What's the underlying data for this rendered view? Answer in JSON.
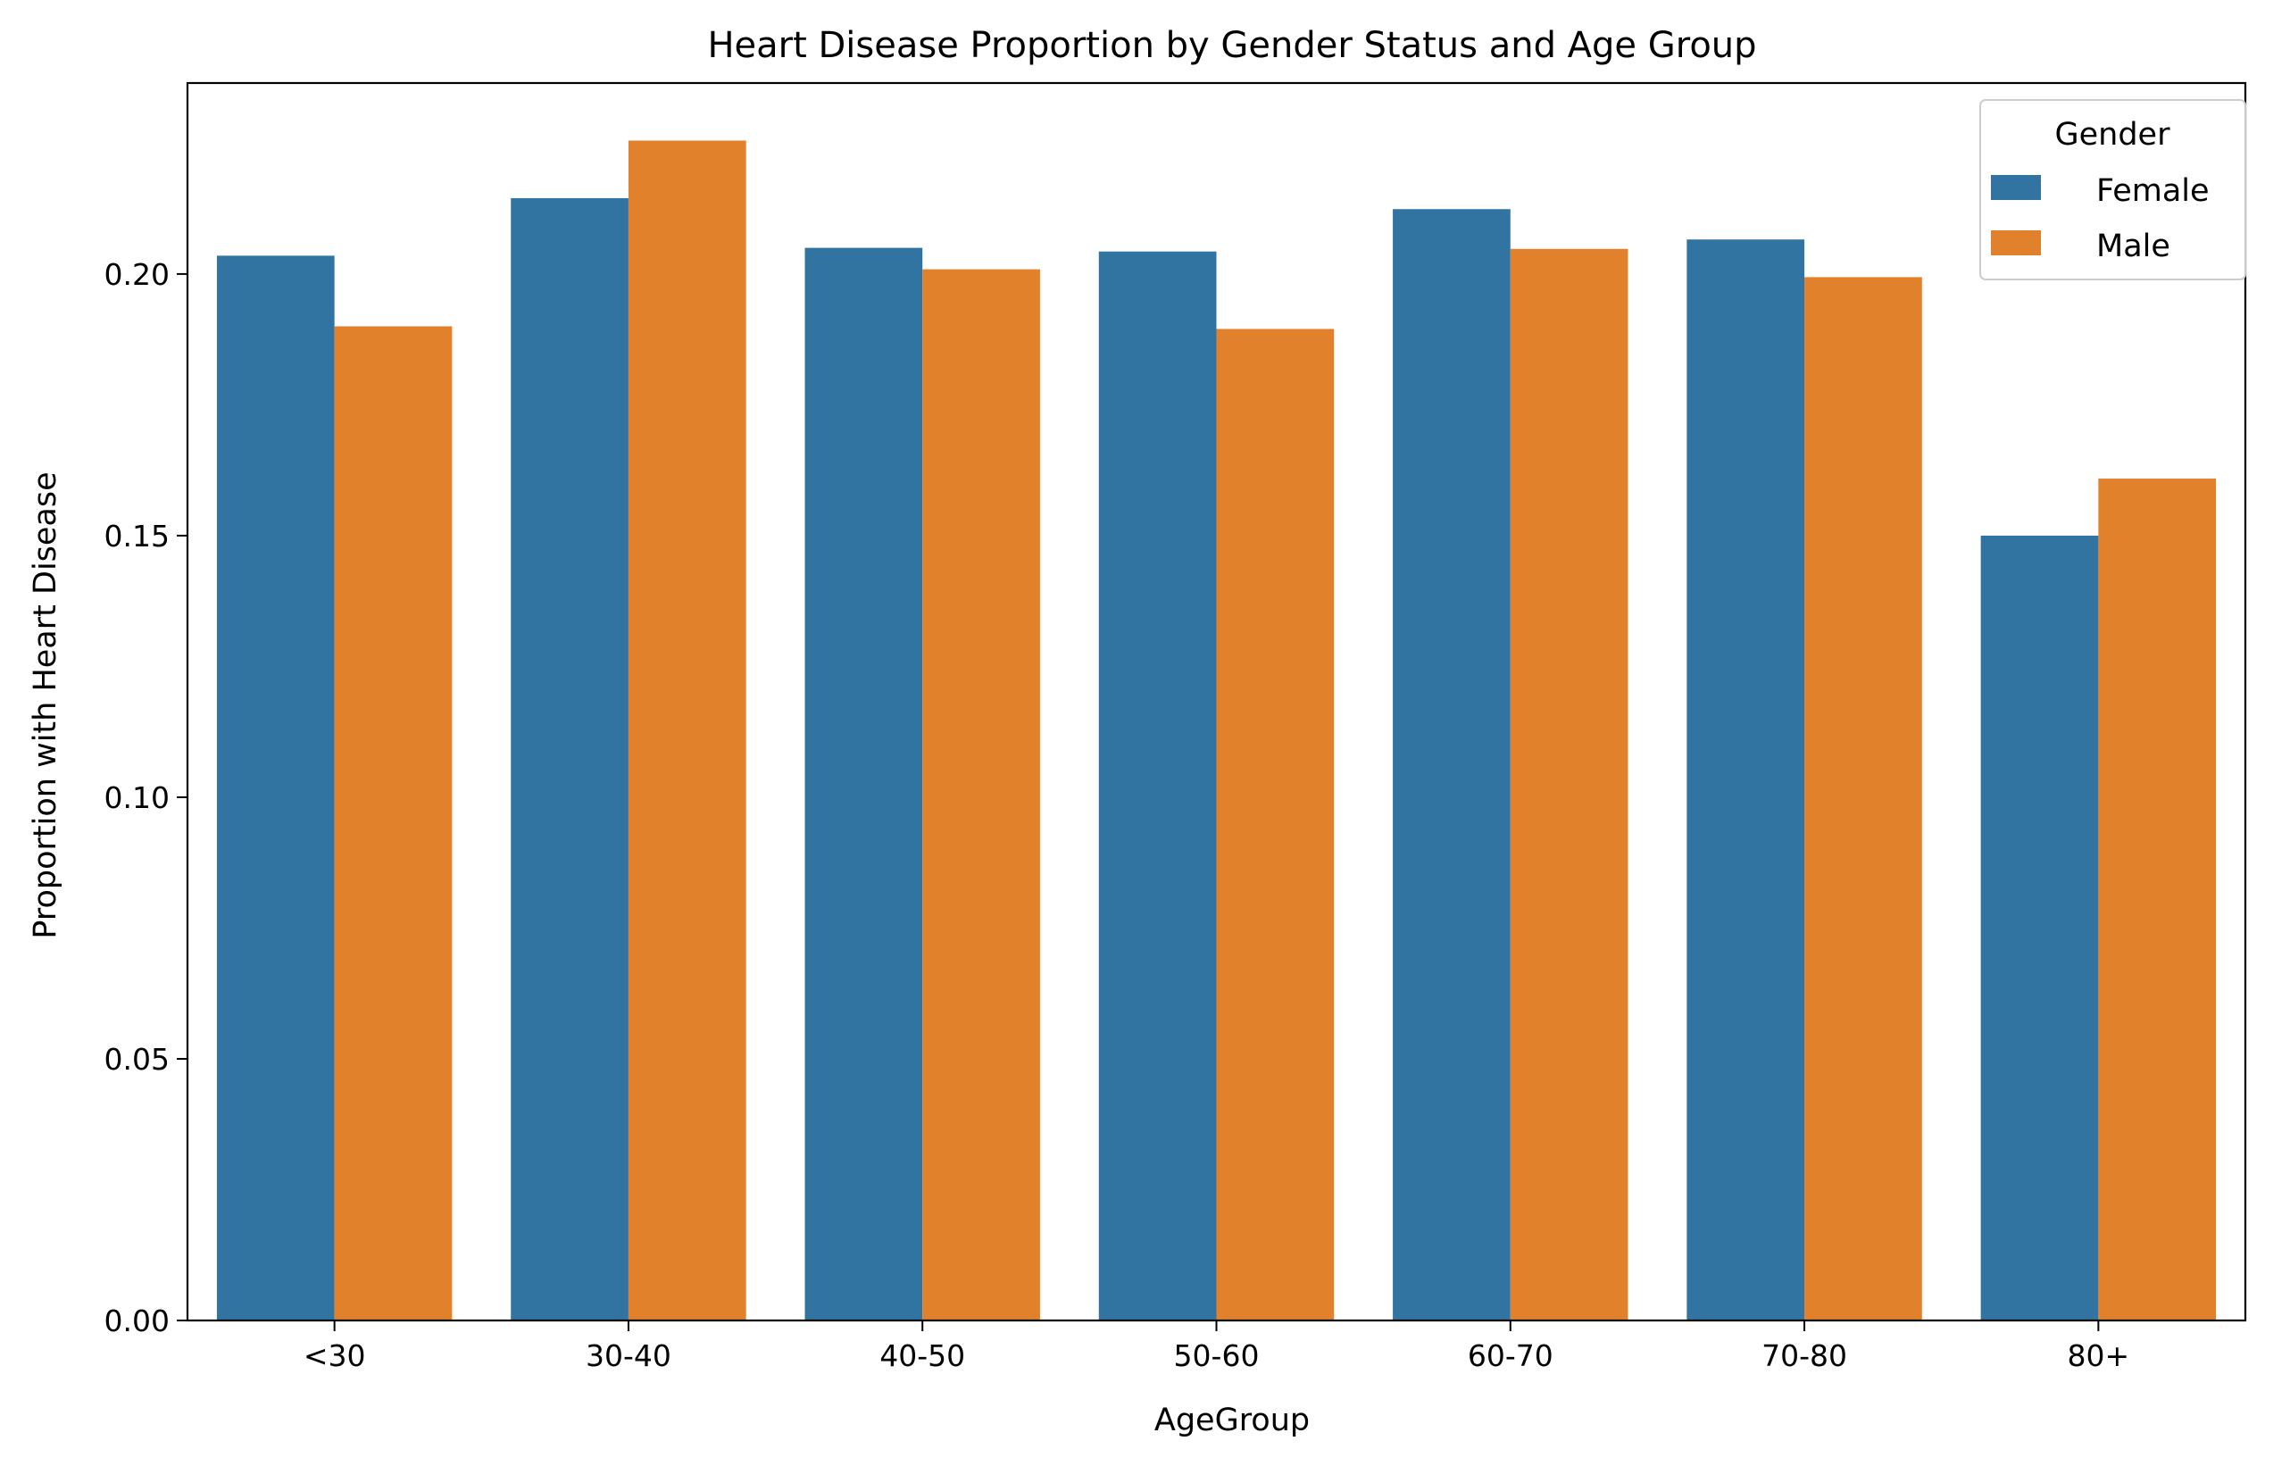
{
  "chart_data": {
    "type": "bar",
    "title": "Heart Disease Proportion by Gender Status and Age Group",
    "xlabel": "AgeGroup",
    "ylabel": "Proportion with Heart Disease",
    "categories": [
      "<30",
      "30-40",
      "40-50",
      "50-60",
      "60-70",
      "70-80",
      "80+"
    ],
    "series": [
      {
        "name": "Female",
        "color": "#3274a1",
        "values": [
          0.2035,
          0.2145,
          0.205,
          0.2043,
          0.2124,
          0.2066,
          0.15
        ]
      },
      {
        "name": "Male",
        "color": "#e1812c",
        "values": [
          0.19,
          0.2255,
          0.2009,
          0.1895,
          0.2048,
          0.1994,
          0.1609
        ]
      }
    ],
    "ylim": [
      0,
      0.2365
    ],
    "yticks": [
      0.0,
      0.05,
      0.1,
      0.15,
      0.2
    ],
    "ytick_labels": [
      "0.00",
      "0.05",
      "0.10",
      "0.15",
      "0.20"
    ],
    "legend": {
      "title": "Gender",
      "placement": "top-right"
    },
    "grid": false
  }
}
